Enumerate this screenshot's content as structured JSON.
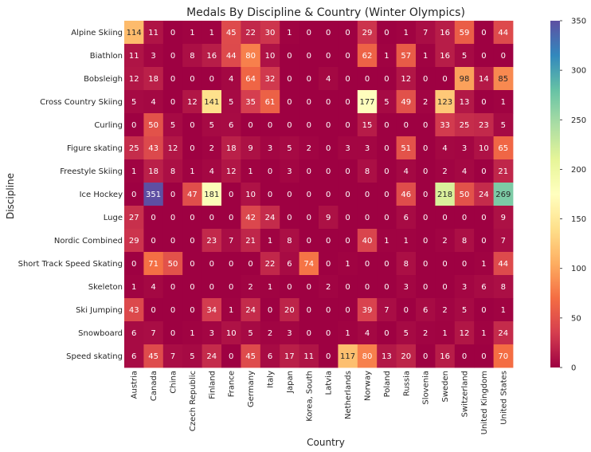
{
  "chart_data": {
    "type": "heatmap",
    "title": "Medals By Discipline & Country (Winter Olympics)",
    "xlabel": "Country",
    "ylabel": "Discipline",
    "colormap": "Spectral",
    "vmin": 0,
    "vmax": 350,
    "colorbar_ticks": [
      0,
      50,
      100,
      150,
      200,
      250,
      300,
      350
    ],
    "columns": [
      "Austria",
      "Canada",
      "China",
      "Czech Republic",
      "Finland",
      "France",
      "Germany",
      "Italy",
      "Japan",
      "Korea, South",
      "Latvia",
      "Netherlands",
      "Norway",
      "Poland",
      "Russia",
      "Slovenia",
      "Sweden",
      "Switzerland",
      "United Kingdom",
      "United States"
    ],
    "rows": [
      "Alpine Skiing",
      "Biathlon",
      "Bobsleigh",
      "Cross Country Skiing",
      "Curling",
      "Figure skating",
      "Freestyle Skiing",
      "Ice Hockey",
      "Luge",
      "Nordic Combined",
      "Short Track Speed Skating",
      "Skeleton",
      "Ski Jumping",
      "Snowboard",
      "Speed skating"
    ],
    "values": [
      [
        114,
        11,
        0,
        1,
        1,
        45,
        22,
        30,
        1,
        0,
        0,
        0,
        29,
        0,
        1,
        7,
        16,
        59,
        0,
        44
      ],
      [
        11,
        3,
        0,
        8,
        16,
        44,
        80,
        10,
        0,
        0,
        0,
        0,
        62,
        1,
        57,
        1,
        16,
        5,
        0,
        0
      ],
      [
        12,
        18,
        0,
        0,
        0,
        4,
        64,
        32,
        0,
        0,
        4,
        0,
        0,
        0,
        12,
        0,
        0,
        98,
        14,
        85
      ],
      [
        5,
        4,
        0,
        12,
        141,
        5,
        35,
        61,
        0,
        0,
        0,
        0,
        177,
        5,
        49,
        2,
        123,
        13,
        0,
        1
      ],
      [
        0,
        50,
        5,
        0,
        5,
        6,
        0,
        0,
        0,
        0,
        0,
        0,
        15,
        0,
        0,
        0,
        33,
        25,
        23,
        5
      ],
      [
        25,
        43,
        12,
        0,
        2,
        18,
        9,
        3,
        5,
        2,
        0,
        3,
        3,
        0,
        51,
        0,
        4,
        3,
        10,
        65
      ],
      [
        1,
        18,
        8,
        1,
        4,
        12,
        1,
        0,
        3,
        0,
        0,
        0,
        8,
        0,
        4,
        0,
        2,
        4,
        0,
        21
      ],
      [
        0,
        351,
        0,
        47,
        181,
        0,
        10,
        0,
        0,
        0,
        0,
        0,
        0,
        0,
        46,
        0,
        218,
        50,
        24,
        269
      ],
      [
        27,
        0,
        0,
        0,
        0,
        0,
        42,
        24,
        0,
        0,
        9,
        0,
        0,
        0,
        6,
        0,
        0,
        0,
        0,
        9
      ],
      [
        29,
        0,
        0,
        0,
        23,
        7,
        21,
        1,
        8,
        0,
        0,
        0,
        40,
        1,
        1,
        0,
        2,
        8,
        0,
        7
      ],
      [
        0,
        71,
        50,
        0,
        0,
        0,
        0,
        22,
        6,
        74,
        0,
        1,
        0,
        0,
        8,
        0,
        0,
        0,
        1,
        44
      ],
      [
        1,
        4,
        0,
        0,
        0,
        0,
        2,
        1,
        0,
        0,
        2,
        0,
        0,
        0,
        3,
        0,
        0,
        3,
        6,
        8
      ],
      [
        43,
        0,
        0,
        0,
        34,
        1,
        24,
        0,
        20,
        0,
        0,
        0,
        39,
        7,
        0,
        6,
        2,
        5,
        0,
        1
      ],
      [
        6,
        7,
        0,
        1,
        3,
        10,
        5,
        2,
        3,
        0,
        0,
        1,
        4,
        0,
        5,
        2,
        1,
        12,
        1,
        24
      ],
      [
        6,
        45,
        7,
        5,
        24,
        0,
        45,
        6,
        17,
        11,
        0,
        117,
        80,
        13,
        20,
        0,
        16,
        0,
        0,
        70
      ]
    ]
  }
}
